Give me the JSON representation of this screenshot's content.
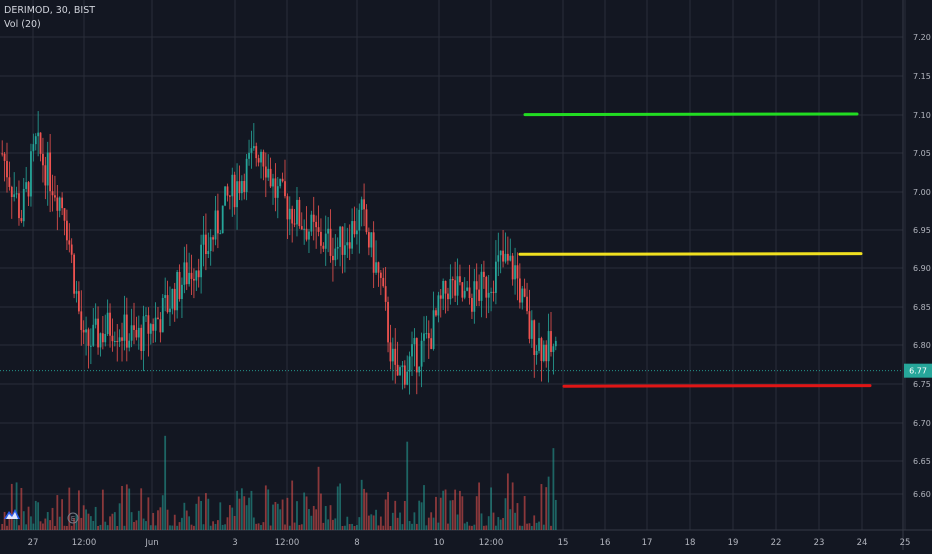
{
  "header": {
    "symbol_line": "DERIMOD, 30, BIST",
    "volume_line": "Vol (20)"
  },
  "colors": {
    "background": "#131722",
    "grid": "#2a2e39",
    "up": "#26a69a",
    "down": "#ef5350",
    "axis_text": "#b2b5be",
    "last_price_badge": "#26a69a"
  },
  "chart_data": {
    "type": "candlestick",
    "symbol": "DERIMOD",
    "interval": "30",
    "exchange": "BIST",
    "y_axis": {
      "ticks": [
        "7.20",
        "7.15",
        "7.10",
        "7.05",
        "7.00",
        "6.95",
        "6.90",
        "6.85",
        "6.80",
        "6.75",
        "6.70",
        "6.65",
        "6.60"
      ],
      "range": [
        6.57,
        7.23
      ],
      "last_price": "6.77"
    },
    "x_axis": {
      "labels": [
        "27",
        "12:00",
        "Jun",
        "3",
        "12:00",
        "8",
        "10",
        "12:00",
        "15",
        "16",
        "17",
        "18",
        "19",
        "22",
        "23",
        "24",
        "25"
      ]
    },
    "horizontal_lines": [
      {
        "name": "green-level",
        "color": "#22dd22",
        "price": 7.1
      },
      {
        "name": "yellow-level",
        "color": "#f0e020",
        "price": 6.92
      },
      {
        "name": "red-level",
        "color": "#e01515",
        "price": 6.75
      }
    ],
    "price_path_keypoints": [
      [
        0,
        7.05
      ],
      [
        8,
        6.97
      ],
      [
        14,
        7.06
      ],
      [
        20,
        7.02
      ],
      [
        26,
        6.98
      ],
      [
        34,
        6.8
      ],
      [
        46,
        6.83
      ],
      [
        56,
        6.81
      ],
      [
        66,
        6.84
      ],
      [
        76,
        6.89
      ],
      [
        86,
        6.93
      ],
      [
        94,
        6.99
      ],
      [
        102,
        7.03
      ],
      [
        108,
        7.06
      ],
      [
        114,
        7.0
      ],
      [
        120,
        6.98
      ],
      [
        126,
        6.96
      ],
      [
        132,
        6.94
      ],
      [
        140,
        6.93
      ],
      [
        150,
        6.97
      ],
      [
        158,
        6.88
      ],
      [
        164,
        6.76
      ],
      [
        170,
        6.78
      ],
      [
        178,
        6.81
      ],
      [
        186,
        6.88
      ],
      [
        194,
        6.86
      ],
      [
        202,
        6.88
      ],
      [
        208,
        6.91
      ],
      [
        214,
        6.9
      ],
      [
        220,
        6.82
      ],
      [
        226,
        6.8
      ],
      [
        232,
        6.79
      ]
    ],
    "volume": {
      "label": "Vol (20)",
      "relative_scale": "bars at bottom of price pane"
    }
  }
}
